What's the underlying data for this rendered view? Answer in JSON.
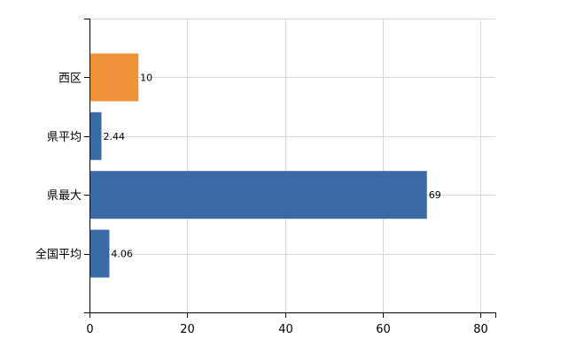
{
  "chart_data": {
    "type": "bar",
    "orientation": "horizontal",
    "categories": [
      "西区",
      "県平均",
      "県最大",
      "全国平均"
    ],
    "values": [
      10,
      2.44,
      69,
      4.06
    ],
    "value_labels": [
      "10",
      "2.44",
      "69",
      "4.06"
    ],
    "xlim": [
      0,
      83
    ],
    "x_ticks": [
      0,
      20,
      40,
      60,
      80
    ],
    "x_tick_labels": [
      "0",
      "20",
      "40",
      "60",
      "80"
    ],
    "grid": true,
    "bar_colors": [
      "#f0923a",
      "#3a6aa6",
      "#3a6aa6",
      "#3a6aa6"
    ],
    "gridline_color": "#d8d8d8",
    "axis_color": "#000000"
  }
}
